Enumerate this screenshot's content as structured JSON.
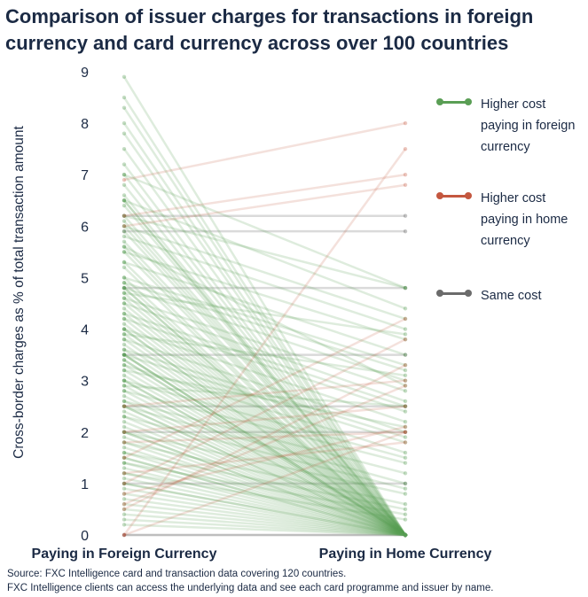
{
  "title": "Comparison of issuer charges for transactions in foreign currency and card currency across over 100 countries",
  "source_line1": "Source: FXC Intelligence card and transaction data covering 120 countries.",
  "source_line2": "FXC Intelligence clients can access the underlying data and see each card programme and issuer by name.",
  "colors": {
    "higher_foreign": "#5a9e55",
    "higher_home": "#c4573f",
    "same": "#6b6b6b",
    "text": "#1b2a44"
  },
  "chart_data": {
    "type": "slope",
    "title": "Comparison of issuer charges for transactions in foreign currency and card currency across over 100 countries",
    "ylabel": "Cross-border charges as % of total transaction amount",
    "xlabel": "",
    "categories": [
      "Paying in Foreign Currency",
      "Paying in Home Currency"
    ],
    "ylim": [
      0,
      9
    ],
    "yticks": [
      "0",
      "1",
      "2",
      "3",
      "4",
      "5",
      "6",
      "7",
      "8",
      "9"
    ],
    "grid": false,
    "legend_position": "right",
    "series": [
      {
        "name": "Higher cost paying in foreign currency",
        "color": "#5a9e55",
        "pairs": [
          [
            8.9,
            0
          ],
          [
            8.5,
            0
          ],
          [
            8.3,
            0
          ],
          [
            8.0,
            0
          ],
          [
            7.8,
            0
          ],
          [
            7.5,
            0
          ],
          [
            7.2,
            0
          ],
          [
            7.0,
            0
          ],
          [
            6.8,
            0
          ],
          [
            6.6,
            0
          ],
          [
            6.5,
            0
          ],
          [
            6.5,
            0
          ],
          [
            6.4,
            0
          ],
          [
            6.2,
            0
          ],
          [
            6.1,
            0
          ],
          [
            6.0,
            0
          ],
          [
            5.9,
            0
          ],
          [
            5.7,
            0
          ],
          [
            5.6,
            0
          ],
          [
            5.5,
            0
          ],
          [
            5.3,
            0
          ],
          [
            5.2,
            0
          ],
          [
            5.0,
            0
          ],
          [
            4.9,
            0
          ],
          [
            4.8,
            0
          ],
          [
            4.8,
            0
          ],
          [
            4.7,
            0
          ],
          [
            4.6,
            0
          ],
          [
            4.5,
            0
          ],
          [
            4.4,
            0
          ],
          [
            4.3,
            0
          ],
          [
            4.2,
            0
          ],
          [
            4.1,
            0
          ],
          [
            4.0,
            0
          ],
          [
            4.0,
            0
          ],
          [
            3.9,
            0
          ],
          [
            3.8,
            0
          ],
          [
            3.7,
            0
          ],
          [
            3.6,
            0
          ],
          [
            3.5,
            0
          ],
          [
            3.5,
            0
          ],
          [
            3.5,
            0
          ],
          [
            3.4,
            0
          ],
          [
            3.4,
            0
          ],
          [
            3.3,
            0
          ],
          [
            3.2,
            0
          ],
          [
            3.1,
            0
          ],
          [
            3.0,
            0
          ],
          [
            3.0,
            0
          ],
          [
            2.9,
            0
          ],
          [
            2.8,
            0
          ],
          [
            2.7,
            0
          ],
          [
            2.6,
            0
          ],
          [
            2.5,
            0
          ],
          [
            2.5,
            0
          ],
          [
            2.4,
            0
          ],
          [
            2.3,
            0
          ],
          [
            2.2,
            0
          ],
          [
            2.1,
            0
          ],
          [
            2.0,
            0
          ],
          [
            2.0,
            0
          ],
          [
            1.9,
            0
          ],
          [
            1.8,
            0
          ],
          [
            1.7,
            0
          ],
          [
            1.6,
            0
          ],
          [
            1.5,
            0
          ],
          [
            1.5,
            0
          ],
          [
            1.4,
            0
          ],
          [
            1.3,
            0
          ],
          [
            1.2,
            0
          ],
          [
            1.1,
            0
          ],
          [
            1.0,
            0
          ],
          [
            1.0,
            0
          ],
          [
            0.9,
            0
          ],
          [
            0.8,
            0
          ],
          [
            0.7,
            0
          ],
          [
            0.6,
            0
          ],
          [
            0.5,
            0
          ],
          [
            0.4,
            0
          ],
          [
            0.3,
            0
          ],
          [
            0.2,
            0
          ],
          [
            7.0,
            4.8
          ],
          [
            6.5,
            4.4
          ],
          [
            6.0,
            4.2
          ],
          [
            5.8,
            4.0
          ],
          [
            5.5,
            3.8
          ],
          [
            5.3,
            3.5
          ],
          [
            5.0,
            3.3
          ],
          [
            4.9,
            3.2
          ],
          [
            4.8,
            3.0
          ],
          [
            4.6,
            2.8
          ],
          [
            4.5,
            2.6
          ],
          [
            4.3,
            2.5
          ],
          [
            4.2,
            2.4
          ],
          [
            4.0,
            2.2
          ],
          [
            3.8,
            2.0
          ],
          [
            3.6,
            1.9
          ],
          [
            3.5,
            1.8
          ],
          [
            3.3,
            1.6
          ],
          [
            3.0,
            1.5
          ],
          [
            2.8,
            1.4
          ],
          [
            2.6,
            1.2
          ],
          [
            2.5,
            1.0
          ],
          [
            2.3,
            0.9
          ],
          [
            2.0,
            0.8
          ],
          [
            1.8,
            0.6
          ],
          [
            1.6,
            0.5
          ],
          [
            1.4,
            0.4
          ],
          [
            1.2,
            0.3
          ],
          [
            6.2,
            4.8
          ],
          [
            5.6,
            2.9
          ],
          [
            4.7,
            3.9
          ],
          [
            3.9,
            3.1
          ],
          [
            3.2,
            2.1
          ],
          [
            2.9,
            2.5
          ]
        ]
      },
      {
        "name": "Higher cost paying in home currency",
        "color": "#c4573f",
        "pairs": [
          [
            0,
            7.5
          ],
          [
            6.9,
            8.0
          ],
          [
            6.2,
            7.0
          ],
          [
            6.0,
            6.8
          ],
          [
            1.5,
            4.2
          ],
          [
            1.0,
            3.8
          ],
          [
            0.5,
            3.3
          ],
          [
            2.0,
            2.5
          ],
          [
            0.8,
            2.1
          ],
          [
            1.8,
            2.0
          ],
          [
            0,
            2.0
          ],
          [
            0.6,
            2.9
          ],
          [
            2.5,
            3.0
          ],
          [
            1.2,
            1.8
          ]
        ]
      },
      {
        "name": "Same cost",
        "color": "#6b6b6b",
        "pairs": [
          [
            0,
            0
          ],
          [
            0,
            0
          ],
          [
            6.2,
            6.2
          ],
          [
            5.9,
            5.9
          ],
          [
            4.8,
            4.8
          ],
          [
            3.5,
            3.5
          ],
          [
            2.5,
            2.5
          ],
          [
            2.0,
            2.0
          ],
          [
            1.0,
            1.0
          ]
        ]
      }
    ]
  },
  "legend": [
    {
      "label": "Higher cost paying in foreign currency"
    },
    {
      "label": "Higher cost paying in home currency"
    },
    {
      "label": "Same cost"
    }
  ]
}
